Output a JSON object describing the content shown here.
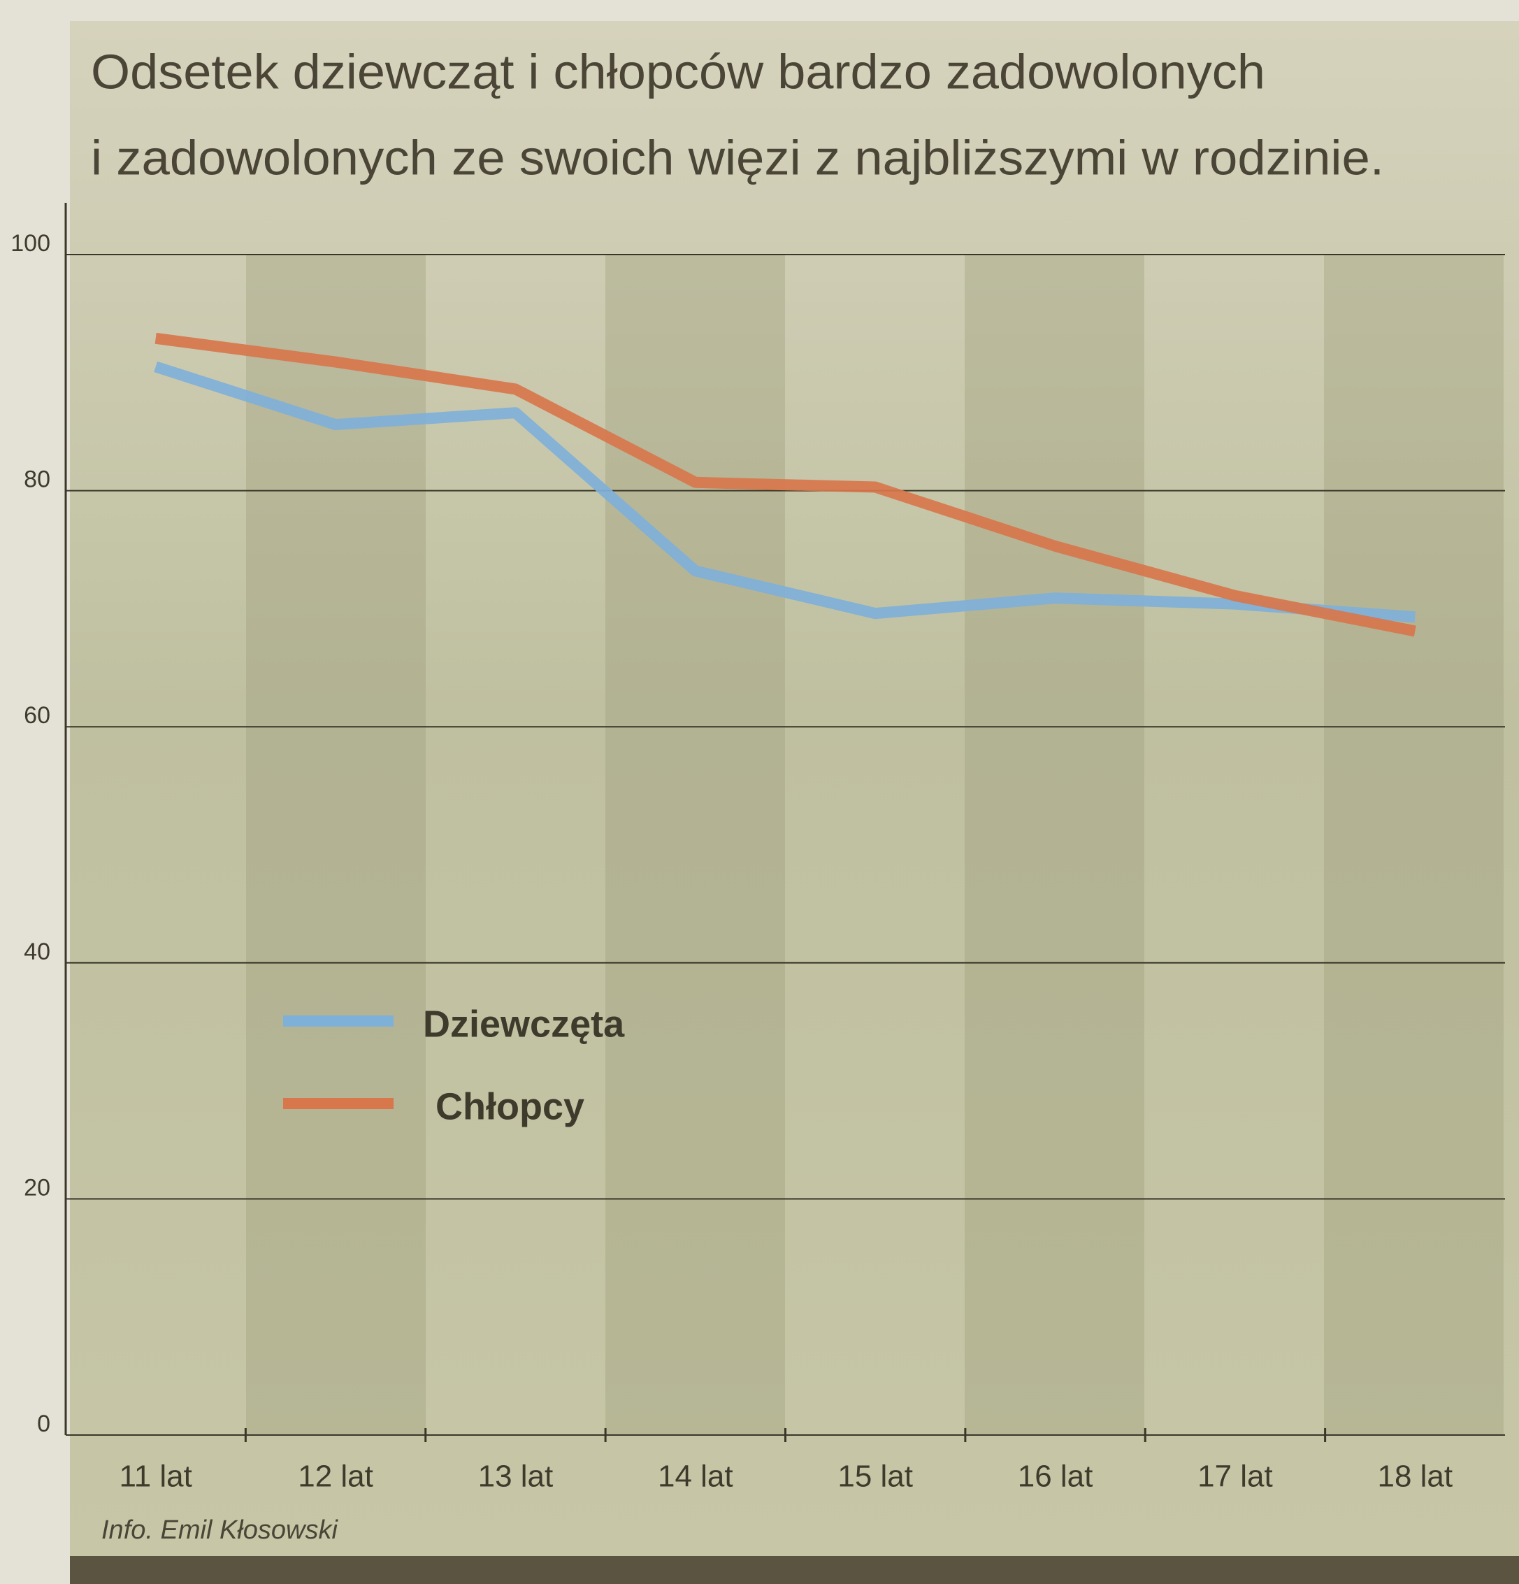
{
  "chart_data": {
    "type": "line",
    "title": [
      "Odsetek dziewcząt i chłopców bardzo zadowolonych",
      "i zadowolonych ze swoich więzi z najbliższymi w rodzinie."
    ],
    "categories": [
      "11 lat",
      "12 lat",
      "13 lat",
      "14 lat",
      "15 lat",
      "16 lat",
      "17 lat",
      "18 lat"
    ],
    "series": [
      {
        "name": "Dziewczęta",
        "color": "#7fb0d8",
        "values": [
          90.5,
          85.6,
          86.6,
          73.2,
          69.6,
          70.9,
          70.4,
          69.3
        ]
      },
      {
        "name": "Chłopcy",
        "color": "#d8764c",
        "values": [
          92.9,
          90.9,
          88.6,
          80.7,
          80.3,
          75.3,
          71.1,
          68.1
        ]
      }
    ],
    "ylim": [
      0,
      100
    ],
    "yticks": [
      0,
      20,
      40,
      60,
      80,
      100
    ],
    "grid": true,
    "source": "Info. Emil Kłosowski"
  }
}
